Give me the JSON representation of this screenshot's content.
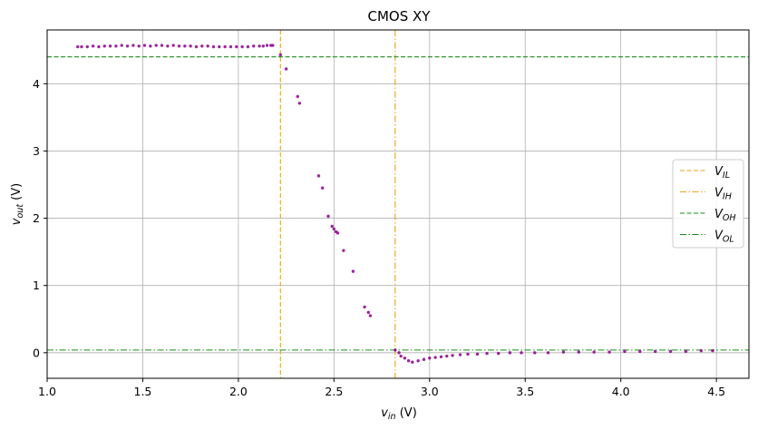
{
  "chart_data": {
    "type": "scatter",
    "title": "CMOS XY",
    "xlabel": {
      "main": "v",
      "sub": "in",
      "unit": " (V)"
    },
    "ylabel": {
      "main": "v",
      "sub": "out",
      "unit": " (V)"
    },
    "xlim": [
      1.0,
      4.67
    ],
    "ylim": [
      -0.38,
      4.8
    ],
    "xticks": [
      1.0,
      1.5,
      2.0,
      2.5,
      3.0,
      3.5,
      4.0,
      4.5
    ],
    "xtick_labels": [
      "1.0",
      "1.5",
      "2.0",
      "2.5",
      "3.0",
      "3.5",
      "4.0",
      "4.5"
    ],
    "yticks": [
      0,
      1,
      2,
      3,
      4
    ],
    "ytick_labels": [
      "0",
      "1",
      "2",
      "3",
      "4"
    ],
    "grid": true,
    "legend_position": "center-right",
    "colors": {
      "points": "#8b008b",
      "vil": "#e8a317",
      "vih": "#e8a317",
      "voh": "#1a8c1a",
      "vol": "#1a8c1a"
    },
    "reference_lines": [
      {
        "name": "V_IL",
        "label_main": "V",
        "label_sub": "IL",
        "orientation": "vertical",
        "value": 2.22,
        "style": "dashed",
        "color": "#e8a317"
      },
      {
        "name": "V_IH",
        "label_main": "V",
        "label_sub": "IH",
        "orientation": "vertical",
        "value": 2.82,
        "style": "dashdot",
        "color": "#e8a317"
      },
      {
        "name": "V_OH",
        "label_main": "V",
        "label_sub": "OH",
        "orientation": "horizontal",
        "value": 4.4,
        "style": "dashed",
        "color": "#1a8c1a"
      },
      {
        "name": "V_OL",
        "label_main": "V",
        "label_sub": "OL",
        "orientation": "horizontal",
        "value": 0.04,
        "style": "dashdot",
        "color": "#1a8c1a"
      }
    ],
    "points": {
      "x": [
        1.16,
        1.18,
        1.21,
        1.24,
        1.27,
        1.3,
        1.33,
        1.36,
        1.39,
        1.42,
        1.45,
        1.48,
        1.51,
        1.54,
        1.57,
        1.6,
        1.63,
        1.66,
        1.69,
        1.72,
        1.75,
        1.78,
        1.81,
        1.84,
        1.87,
        1.9,
        1.93,
        1.96,
        1.99,
        2.02,
        2.05,
        2.08,
        2.11,
        2.13,
        2.15,
        2.17,
        2.18,
        2.22,
        2.25,
        2.31,
        2.32,
        2.42,
        2.44,
        2.47,
        2.49,
        2.5,
        2.51,
        2.52,
        2.55,
        2.6,
        2.66,
        2.68,
        2.69,
        2.82,
        2.84,
        2.85,
        2.87,
        2.89,
        2.91,
        2.94,
        2.97,
        3.0,
        3.03,
        3.06,
        3.09,
        3.12,
        3.16,
        3.2,
        3.25,
        3.3,
        3.36,
        3.42,
        3.48,
        3.55,
        3.62,
        3.7,
        3.78,
        3.86,
        3.94,
        4.02,
        4.1,
        4.18,
        4.26,
        4.34,
        4.42,
        4.48
      ],
      "y": [
        4.55,
        4.55,
        4.55,
        4.56,
        4.55,
        4.56,
        4.56,
        4.56,
        4.57,
        4.56,
        4.57,
        4.56,
        4.57,
        4.56,
        4.57,
        4.57,
        4.56,
        4.57,
        4.56,
        4.56,
        4.56,
        4.55,
        4.56,
        4.56,
        4.55,
        4.55,
        4.55,
        4.55,
        4.55,
        4.55,
        4.55,
        4.56,
        4.56,
        4.56,
        4.57,
        4.57,
        4.57,
        4.43,
        4.22,
        3.81,
        3.71,
        2.63,
        2.45,
        2.03,
        1.88,
        1.84,
        1.8,
        1.78,
        1.52,
        1.21,
        0.68,
        0.6,
        0.55,
        0.04,
        0.0,
        -0.05,
        -0.08,
        -0.12,
        -0.14,
        -0.12,
        -0.1,
        -0.08,
        -0.07,
        -0.06,
        -0.05,
        -0.04,
        -0.03,
        -0.02,
        -0.02,
        -0.01,
        -0.01,
        0.0,
        0.0,
        0.0,
        0.0,
        0.01,
        0.01,
        0.01,
        0.01,
        0.02,
        0.02,
        0.02,
        0.02,
        0.02,
        0.03,
        0.03
      ]
    }
  }
}
